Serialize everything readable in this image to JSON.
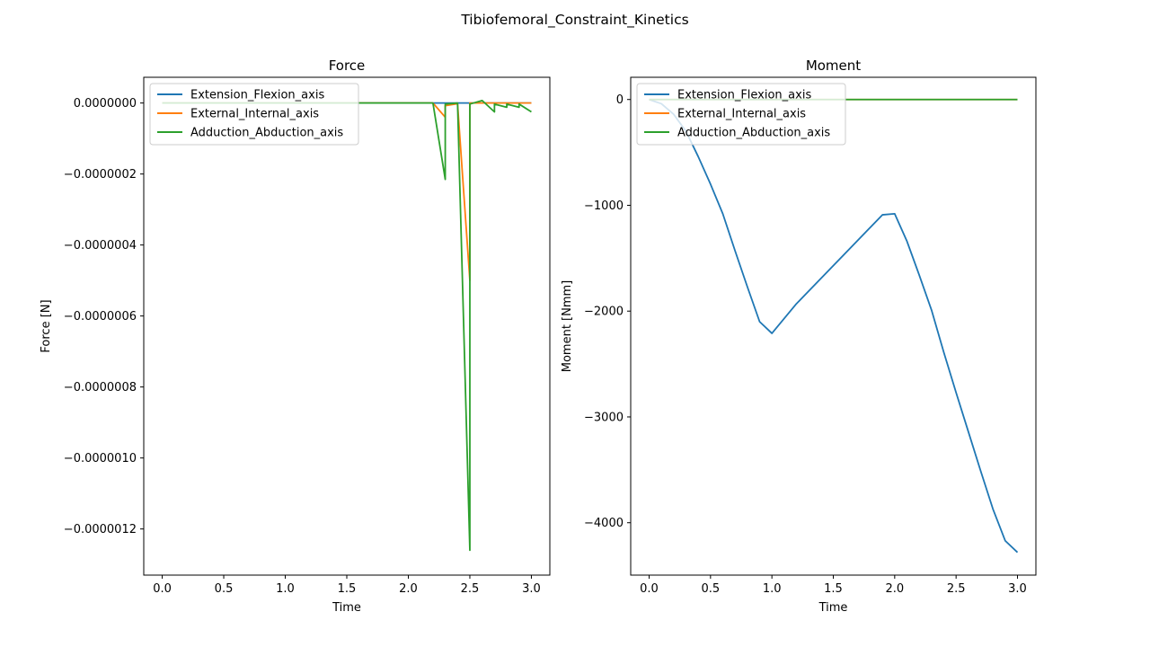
{
  "figure": {
    "title": "Tibiofemoral_Constraint_Kinetics"
  },
  "colors": {
    "series": [
      "#1f77b4",
      "#ff7f0e",
      "#2ca02c"
    ]
  },
  "chart_data": [
    {
      "type": "line",
      "title": "Force",
      "xlabel": "Time",
      "ylabel": "Force [N]",
      "xlim": [
        -0.15,
        3.15
      ],
      "ylim": [
        -1.33e-06,
        7.25e-08
      ],
      "xticks": [
        0.0,
        0.5,
        1.0,
        1.5,
        2.0,
        2.5,
        3.0
      ],
      "xtick_labels": [
        "0.0",
        "0.5",
        "1.0",
        "1.5",
        "2.0",
        "2.5",
        "3.0"
      ],
      "yticks": [
        0.0,
        -2e-07,
        -4e-07,
        -6e-07,
        -8e-07,
        -1e-06,
        -1.2e-06
      ],
      "ytick_labels": [
        "0.0000000",
        "−0.0000002",
        "−0.0000004",
        "−0.0000006",
        "−0.0000008",
        "−0.0000010",
        "−0.0000012"
      ],
      "legend_position": "upper left",
      "grid": false,
      "series": [
        {
          "name": "Extension_Flexion_axis",
          "x": [
            0.0,
            0.1,
            0.2,
            0.3,
            0.4,
            0.5,
            0.6,
            0.7,
            0.8,
            0.9,
            1.0,
            1.1,
            1.2,
            1.3,
            1.4,
            1.5,
            1.6,
            1.7,
            1.8,
            1.9,
            2.0,
            2.1,
            2.2,
            2.3,
            2.4,
            2.5,
            2.6,
            2.7,
            2.8,
            2.9,
            3.0
          ],
          "y": [
            0,
            0,
            0,
            0,
            0,
            0,
            0,
            0,
            0,
            0,
            0,
            0,
            0,
            0,
            0,
            0,
            0,
            0,
            0,
            0,
            0,
            0,
            0,
            0,
            0,
            0,
            0,
            0,
            0,
            0,
            0
          ]
        },
        {
          "name": "External_Internal_axis",
          "x": [
            0.0,
            0.1,
            0.2,
            0.3,
            0.4,
            0.5,
            0.6,
            0.7,
            0.8,
            0.9,
            1.0,
            1.1,
            1.2,
            1.3,
            1.4,
            1.5,
            1.6,
            1.7,
            1.8,
            1.9,
            2.0,
            2.1,
            2.2,
            2.3,
            2.3,
            2.4,
            2.5,
            2.5,
            2.6,
            2.7,
            2.8,
            2.9,
            3.0
          ],
          "y": [
            0,
            0,
            0,
            0,
            0,
            0,
            0,
            0,
            0,
            0,
            0,
            0,
            0,
            0,
            0,
            0,
            0,
            0,
            0,
            0,
            0,
            0,
            0,
            -4e-08,
            -7.5e-09,
            -2e-09,
            -5e-07,
            0,
            0,
            0,
            0,
            0,
            0
          ]
        },
        {
          "name": "Adduction_Abduction_axis",
          "x": [
            0.0,
            0.1,
            0.2,
            0.3,
            0.4,
            0.5,
            0.6,
            0.7,
            0.8,
            0.9,
            1.0,
            1.1,
            1.2,
            1.3,
            1.4,
            1.5,
            1.6,
            1.7,
            1.8,
            1.9,
            2.0,
            2.1,
            2.2,
            2.3,
            2.3,
            2.4,
            2.5,
            2.5,
            2.6,
            2.7,
            2.7,
            2.8,
            2.8,
            2.9,
            2.9,
            3.0
          ],
          "y": [
            0,
            0,
            0,
            0,
            0,
            0,
            0,
            0,
            0,
            0,
            0,
            0,
            0,
            0,
            0,
            0,
            0,
            0,
            0,
            0,
            0,
            0,
            0,
            -2.15e-07,
            -3e-09,
            0,
            -1.26e-06,
            -3e-09,
            7e-09,
            -2.5e-08,
            -3e-09,
            -1.2e-08,
            -3e-09,
            -1.2e-08,
            -3e-09,
            -2.5e-08
          ]
        }
      ]
    },
    {
      "type": "line",
      "title": "Moment",
      "xlabel": "Time",
      "ylabel": "Moment [Nmm]",
      "xlim": [
        -0.15,
        3.15
      ],
      "ylim": [
        -4495,
        210
      ],
      "xticks": [
        0.0,
        0.5,
        1.0,
        1.5,
        2.0,
        2.5,
        3.0
      ],
      "xtick_labels": [
        "0.0",
        "0.5",
        "1.0",
        "1.5",
        "2.0",
        "2.5",
        "3.0"
      ],
      "yticks": [
        0,
        -1000,
        -2000,
        -3000,
        -4000
      ],
      "ytick_labels": [
        "0",
        "−1000",
        "−2000",
        "−3000",
        "−4000"
      ],
      "legend_position": "upper left",
      "grid": false,
      "series": [
        {
          "name": "Extension_Flexion_axis",
          "x": [
            0.0,
            0.1,
            0.2,
            0.3,
            0.4,
            0.5,
            0.6,
            0.7,
            0.8,
            0.9,
            1.0,
            1.1,
            1.2,
            1.3,
            1.4,
            1.5,
            1.6,
            1.7,
            1.8,
            1.9,
            2.0,
            2.1,
            2.2,
            2.3,
            2.4,
            2.5,
            2.6,
            2.7,
            2.8,
            2.9,
            3.0
          ],
          "y": [
            0,
            -40,
            -140,
            -300,
            -540,
            -800,
            -1080,
            -1430,
            -1770,
            -2100,
            -2210,
            -2070,
            -1930,
            -1810,
            -1690,
            -1570,
            -1450,
            -1330,
            -1210,
            -1090,
            -1080,
            -1340,
            -1660,
            -1990,
            -2390,
            -2770,
            -3140,
            -3510,
            -3870,
            -4170,
            -4280
          ]
        },
        {
          "name": "External_Internal_axis",
          "x": [
            0.0,
            0.5,
            1.0,
            1.5,
            2.0,
            2.5,
            3.0
          ],
          "y": [
            0,
            0,
            0,
            0,
            0,
            0,
            0
          ]
        },
        {
          "name": "Adduction_Abduction_axis",
          "x": [
            0.0,
            0.5,
            1.0,
            1.5,
            2.0,
            2.5,
            3.0
          ],
          "y": [
            0,
            0,
            0,
            0,
            0,
            0,
            0
          ]
        }
      ]
    }
  ]
}
